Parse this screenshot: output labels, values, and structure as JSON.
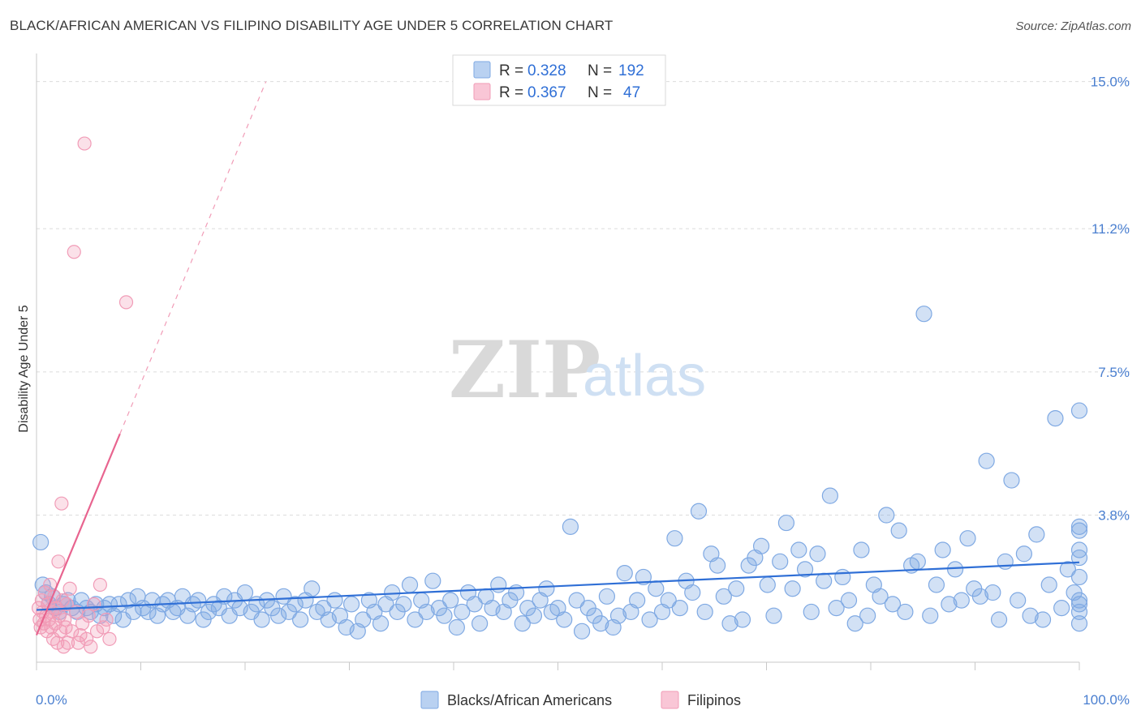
{
  "header": {
    "title": "BLACK/AFRICAN AMERICAN VS FILIPINO DISABILITY AGE UNDER 5 CORRELATION CHART",
    "source": "Source: ZipAtlas.com"
  },
  "watermark": {
    "zip": "ZIP",
    "atlas": "atlas"
  },
  "legend": {
    "rows": [
      {
        "r_label": "R =",
        "r_value": "0.328",
        "n_label": "N =",
        "n_value": "192",
        "color": "#7fa9e3"
      },
      {
        "r_label": "R =",
        "r_value": "0.367",
        "n_label": "N =",
        "n_value": "47",
        "color": "#f19cb7"
      }
    ]
  },
  "bottom_legend": [
    {
      "label": "Blacks/African Americans",
      "color": "#7fa9e3"
    },
    {
      "label": "Filipinos",
      "color": "#f19cb7"
    }
  ],
  "chart_data": {
    "type": "scatter",
    "title": "BLACK/AFRICAN AMERICAN VS FILIPINO DISABILITY AGE UNDER 5 CORRELATION CHART",
    "xlabel": "",
    "ylabel": "Disability Age Under 5",
    "xlim": [
      0,
      100
    ],
    "ylim": [
      0,
      15.6
    ],
    "x_tick_labels": [
      "0.0%",
      "100.0%"
    ],
    "y_ticks": [
      3.8,
      7.5,
      11.2,
      15.0
    ],
    "y_tick_labels": [
      "3.8%",
      "7.5%",
      "11.2%",
      "15.0%"
    ],
    "grid": true,
    "series": [
      {
        "name": "Blacks/African Americans",
        "color": "#7fa9e3",
        "trend": {
          "x": [
            0.0,
            100.0
          ],
          "y": [
            1.35,
            2.58
          ],
          "dashed_extension": false
        },
        "points": [
          [
            0.4,
            3.1
          ],
          [
            0.6,
            2.0
          ],
          [
            0.9,
            1.8
          ],
          [
            1.2,
            1.5
          ],
          [
            1.5,
            1.7
          ],
          [
            1.8,
            1.4
          ],
          [
            2.2,
            1.3
          ],
          [
            2.6,
            1.5
          ],
          [
            3.0,
            1.6
          ],
          [
            3.4,
            1.4
          ],
          [
            3.9,
            1.3
          ],
          [
            4.3,
            1.6
          ],
          [
            4.8,
            1.4
          ],
          [
            5.2,
            1.3
          ],
          [
            5.7,
            1.5
          ],
          [
            6.1,
            1.2
          ],
          [
            6.5,
            1.4
          ],
          [
            7.0,
            1.5
          ],
          [
            7.4,
            1.2
          ],
          [
            7.9,
            1.5
          ],
          [
            8.3,
            1.1
          ],
          [
            8.8,
            1.6
          ],
          [
            9.3,
            1.3
          ],
          [
            9.7,
            1.7
          ],
          [
            10.2,
            1.4
          ],
          [
            10.7,
            1.3
          ],
          [
            11.1,
            1.6
          ],
          [
            11.6,
            1.2
          ],
          [
            12.1,
            1.5
          ],
          [
            12.6,
            1.6
          ],
          [
            13.1,
            1.3
          ],
          [
            13.5,
            1.4
          ],
          [
            14.0,
            1.7
          ],
          [
            14.5,
            1.2
          ],
          [
            15.0,
            1.5
          ],
          [
            15.5,
            1.6
          ],
          [
            16.0,
            1.1
          ],
          [
            16.5,
            1.3
          ],
          [
            17.0,
            1.5
          ],
          [
            17.5,
            1.4
          ],
          [
            18.0,
            1.7
          ],
          [
            18.5,
            1.2
          ],
          [
            19.0,
            1.6
          ],
          [
            19.5,
            1.4
          ],
          [
            20.0,
            1.8
          ],
          [
            20.6,
            1.3
          ],
          [
            21.1,
            1.5
          ],
          [
            21.6,
            1.1
          ],
          [
            22.1,
            1.6
          ],
          [
            22.6,
            1.4
          ],
          [
            23.2,
            1.2
          ],
          [
            23.7,
            1.7
          ],
          [
            24.2,
            1.3
          ],
          [
            24.8,
            1.5
          ],
          [
            25.3,
            1.1
          ],
          [
            25.8,
            1.6
          ],
          [
            26.4,
            1.9
          ],
          [
            26.9,
            1.3
          ],
          [
            27.5,
            1.4
          ],
          [
            28.0,
            1.1
          ],
          [
            28.6,
            1.6
          ],
          [
            29.1,
            1.2
          ],
          [
            29.7,
            0.9
          ],
          [
            30.2,
            1.5
          ],
          [
            30.8,
            0.8
          ],
          [
            31.3,
            1.1
          ],
          [
            31.9,
            1.6
          ],
          [
            32.4,
            1.3
          ],
          [
            33.0,
            1.0
          ],
          [
            33.5,
            1.5
          ],
          [
            34.1,
            1.8
          ],
          [
            34.6,
            1.3
          ],
          [
            35.2,
            1.5
          ],
          [
            35.8,
            2.0
          ],
          [
            36.3,
            1.1
          ],
          [
            36.9,
            1.6
          ],
          [
            37.4,
            1.3
          ],
          [
            38.0,
            2.1
          ],
          [
            38.6,
            1.4
          ],
          [
            39.1,
            1.2
          ],
          [
            39.7,
            1.6
          ],
          [
            40.3,
            0.9
          ],
          [
            40.8,
            1.3
          ],
          [
            41.4,
            1.8
          ],
          [
            42.0,
            1.5
          ],
          [
            42.5,
            1.0
          ],
          [
            43.1,
            1.7
          ],
          [
            43.7,
            1.4
          ],
          [
            44.3,
            2.0
          ],
          [
            44.8,
            1.3
          ],
          [
            45.4,
            1.6
          ],
          [
            46.0,
            1.8
          ],
          [
            46.6,
            1.0
          ],
          [
            47.1,
            1.4
          ],
          [
            47.7,
            1.2
          ],
          [
            48.3,
            1.6
          ],
          [
            48.9,
            1.9
          ],
          [
            49.4,
            1.3
          ],
          [
            50.0,
            1.4
          ],
          [
            50.6,
            1.1
          ],
          [
            51.2,
            3.5
          ],
          [
            51.8,
            1.6
          ],
          [
            52.3,
            0.8
          ],
          [
            52.9,
            1.4
          ],
          [
            53.5,
            1.2
          ],
          [
            54.1,
            1.0
          ],
          [
            54.7,
            1.7
          ],
          [
            55.3,
            0.9
          ],
          [
            55.8,
            1.2
          ],
          [
            56.4,
            2.3
          ],
          [
            57.0,
            1.3
          ],
          [
            57.6,
            1.6
          ],
          [
            58.2,
            2.2
          ],
          [
            58.8,
            1.1
          ],
          [
            59.4,
            1.9
          ],
          [
            60.0,
            1.3
          ],
          [
            60.6,
            1.6
          ],
          [
            61.2,
            3.2
          ],
          [
            61.7,
            1.4
          ],
          [
            62.3,
            2.1
          ],
          [
            62.9,
            1.8
          ],
          [
            63.5,
            3.9
          ],
          [
            64.1,
            1.3
          ],
          [
            64.7,
            2.8
          ],
          [
            65.3,
            2.5
          ],
          [
            65.9,
            1.7
          ],
          [
            66.5,
            1.0
          ],
          [
            67.1,
            1.9
          ],
          [
            67.7,
            1.1
          ],
          [
            68.3,
            2.5
          ],
          [
            68.9,
            2.7
          ],
          [
            69.5,
            3.0
          ],
          [
            70.1,
            2.0
          ],
          [
            70.7,
            1.2
          ],
          [
            71.3,
            2.6
          ],
          [
            71.9,
            3.6
          ],
          [
            72.5,
            1.9
          ],
          [
            73.1,
            2.9
          ],
          [
            73.7,
            2.4
          ],
          [
            74.3,
            1.3
          ],
          [
            74.9,
            2.8
          ],
          [
            75.5,
            2.1
          ],
          [
            76.1,
            4.3
          ],
          [
            76.7,
            1.4
          ],
          [
            77.3,
            2.2
          ],
          [
            77.9,
            1.6
          ],
          [
            78.5,
            1.0
          ],
          [
            79.1,
            2.9
          ],
          [
            79.7,
            1.2
          ],
          [
            80.3,
            2.0
          ],
          [
            80.9,
            1.7
          ],
          [
            81.5,
            3.8
          ],
          [
            82.1,
            1.5
          ],
          [
            82.7,
            3.4
          ],
          [
            83.3,
            1.3
          ],
          [
            83.9,
            2.5
          ],
          [
            84.5,
            2.6
          ],
          [
            85.1,
            9.0
          ],
          [
            85.7,
            1.2
          ],
          [
            86.3,
            2.0
          ],
          [
            86.9,
            2.9
          ],
          [
            87.5,
            1.5
          ],
          [
            88.1,
            2.4
          ],
          [
            88.7,
            1.6
          ],
          [
            89.3,
            3.2
          ],
          [
            89.9,
            1.9
          ],
          [
            90.5,
            1.7
          ],
          [
            91.1,
            5.2
          ],
          [
            91.7,
            1.8
          ],
          [
            92.3,
            1.1
          ],
          [
            92.9,
            2.6
          ],
          [
            93.5,
            4.7
          ],
          [
            94.1,
            1.6
          ],
          [
            94.7,
            2.8
          ],
          [
            95.3,
            1.2
          ],
          [
            95.9,
            3.3
          ],
          [
            96.5,
            1.1
          ],
          [
            97.1,
            2.0
          ],
          [
            97.7,
            6.3
          ],
          [
            98.3,
            1.4
          ],
          [
            98.9,
            2.4
          ],
          [
            99.5,
            1.8
          ],
          [
            100.0,
            3.4
          ],
          [
            100.3,
            2.9
          ],
          [
            100.6,
            1.0
          ],
          [
            100.9,
            2.2
          ],
          [
            101.2,
            6.5
          ],
          [
            101.5,
            1.5
          ],
          [
            101.8,
            1.3
          ],
          [
            102.1,
            3.5
          ],
          [
            102.4,
            2.7
          ],
          [
            102.7,
            1.6
          ]
        ]
      },
      {
        "name": "Filipinos",
        "color": "#f19cb7",
        "trend": {
          "x": [
            0.0,
            8.0
          ],
          "y": [
            0.7,
            5.9
          ],
          "dashed_extension_to": [
            22.0,
            15.0
          ]
        },
        "points": [
          [
            0.2,
            1.4
          ],
          [
            0.3,
            1.1
          ],
          [
            0.4,
            0.9
          ],
          [
            0.5,
            1.6
          ],
          [
            0.6,
            1.3
          ],
          [
            0.7,
            1.0
          ],
          [
            0.8,
            1.8
          ],
          [
            0.9,
            1.2
          ],
          [
            1.0,
            0.8
          ],
          [
            1.1,
            1.5
          ],
          [
            1.2,
            1.1
          ],
          [
            1.3,
            2.0
          ],
          [
            1.4,
            0.9
          ],
          [
            1.5,
            1.3
          ],
          [
            1.6,
            0.6
          ],
          [
            1.7,
            1.7
          ],
          [
            1.8,
            1.0
          ],
          [
            1.9,
            1.4
          ],
          [
            2.0,
            0.5
          ],
          [
            2.1,
            2.6
          ],
          [
            2.2,
            1.2
          ],
          [
            2.3,
            0.8
          ],
          [
            2.4,
            4.1
          ],
          [
            2.5,
            1.6
          ],
          [
            2.6,
            0.4
          ],
          [
            2.7,
            1.1
          ],
          [
            2.8,
            0.9
          ],
          [
            2.9,
            1.5
          ],
          [
            3.0,
            0.5
          ],
          [
            3.2,
            1.9
          ],
          [
            3.4,
            0.8
          ],
          [
            3.6,
            10.6
          ],
          [
            3.8,
            1.3
          ],
          [
            4.0,
            0.5
          ],
          [
            4.2,
            0.7
          ],
          [
            4.4,
            1.0
          ],
          [
            4.6,
            13.4
          ],
          [
            4.8,
            0.6
          ],
          [
            5.0,
            1.2
          ],
          [
            5.2,
            0.4
          ],
          [
            5.5,
            1.5
          ],
          [
            5.8,
            0.8
          ],
          [
            6.1,
            2.0
          ],
          [
            6.4,
            0.9
          ],
          [
            6.7,
            1.1
          ],
          [
            7.0,
            0.6
          ],
          [
            8.6,
            9.3
          ]
        ]
      }
    ]
  }
}
